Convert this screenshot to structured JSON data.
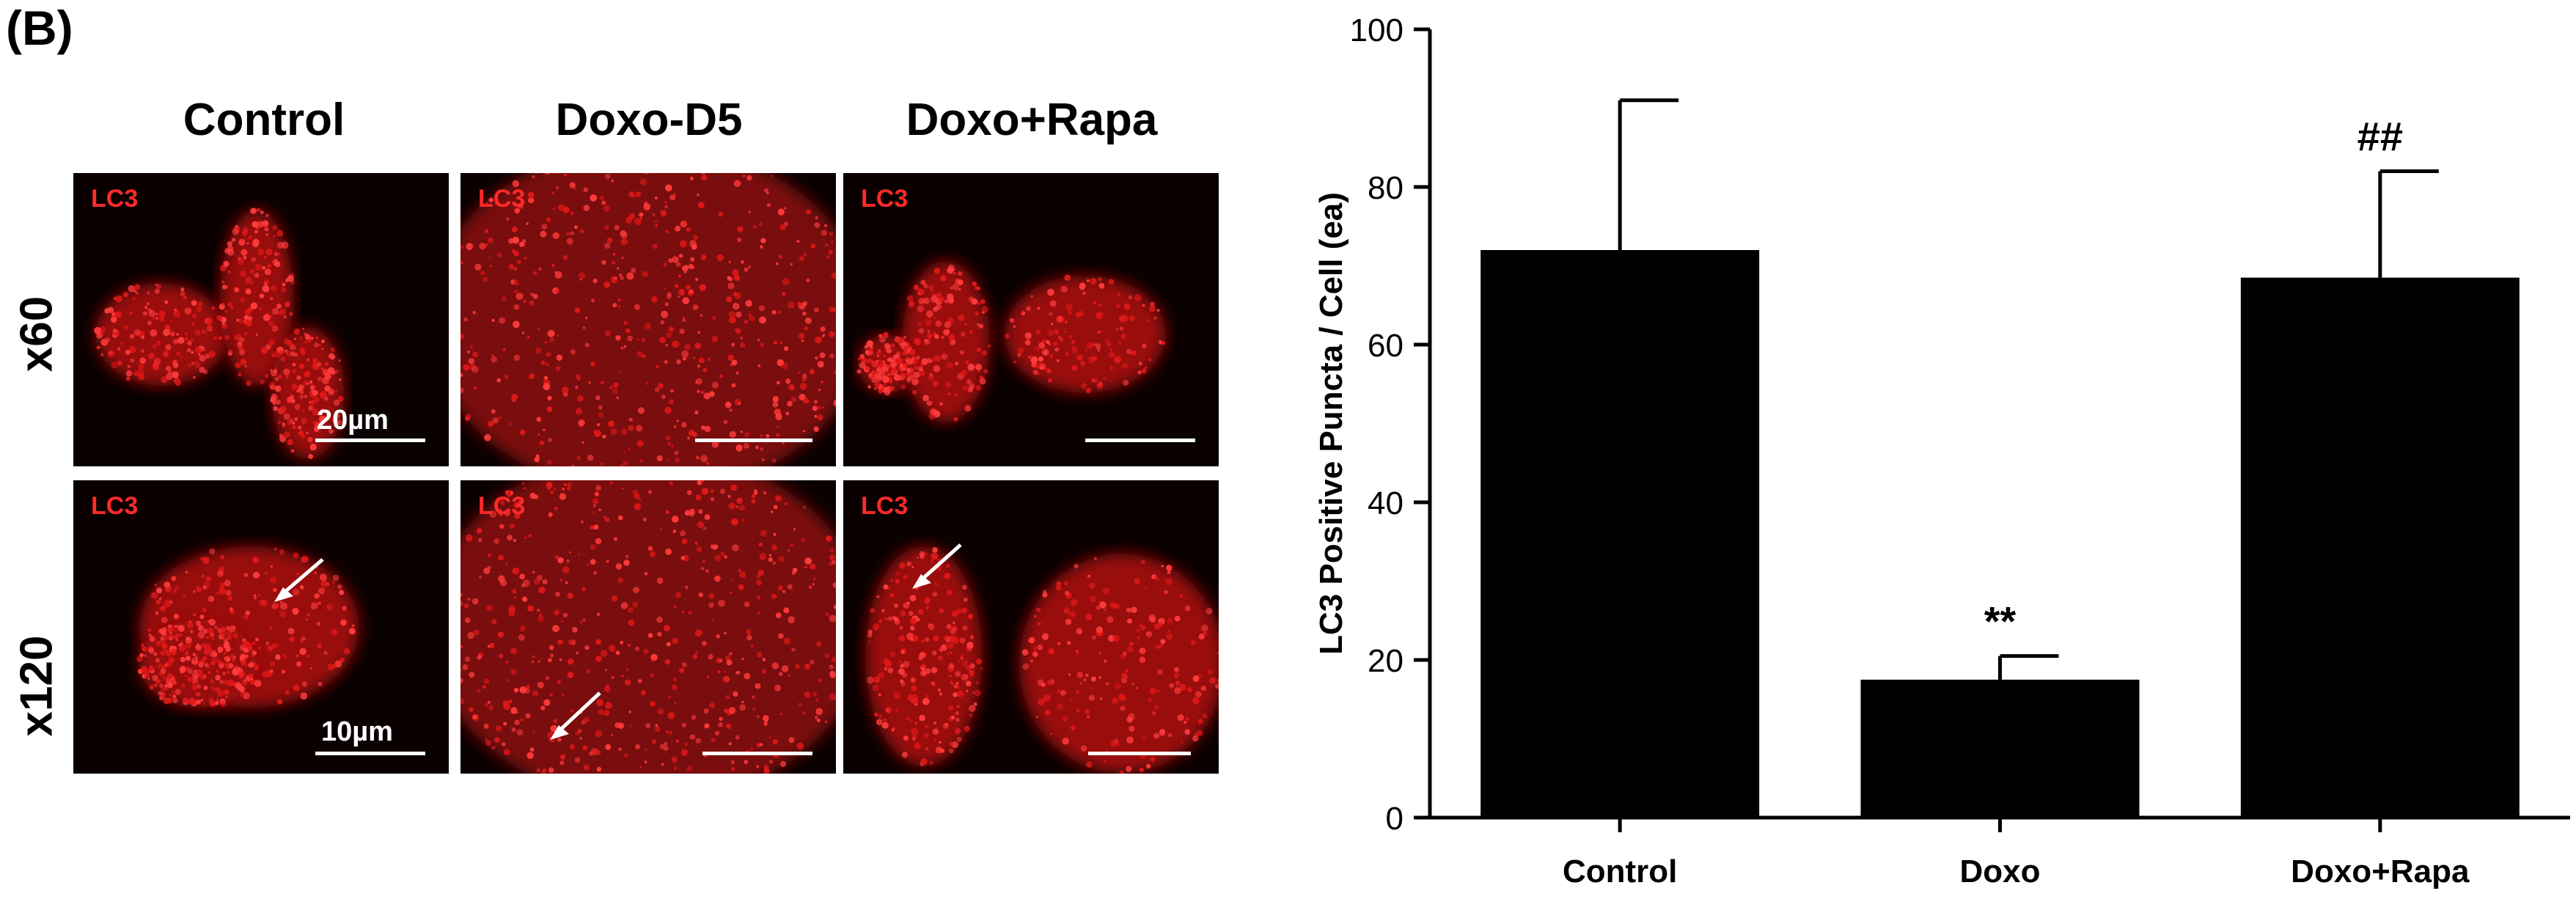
{
  "panel_label": "(B)",
  "images": {
    "columns": [
      "Control",
      "Doxo-D5",
      "Doxo+Rapa"
    ],
    "rows": [
      "x60",
      "x120"
    ],
    "stain_label": "LC3",
    "scale_labels": {
      "x60": "20µm",
      "x120": "10µm"
    }
  },
  "colors": {
    "bars": "#000000",
    "stain": "#ff2a2a",
    "background": "#0a0000"
  },
  "chart_data": {
    "type": "bar",
    "categories": [
      "Control",
      "Doxo",
      "Doxo+Rapa"
    ],
    "values": [
      72,
      17.5,
      68.5
    ],
    "errors": [
      19,
      3,
      13.5
    ],
    "annotations": [
      "",
      "**",
      "##"
    ],
    "ylabel": "LC3 Positive Puncta / Cell (ea)",
    "ylim": [
      0,
      100
    ],
    "yticks": [
      0,
      20,
      40,
      60,
      80,
      100
    ],
    "grid": false
  }
}
